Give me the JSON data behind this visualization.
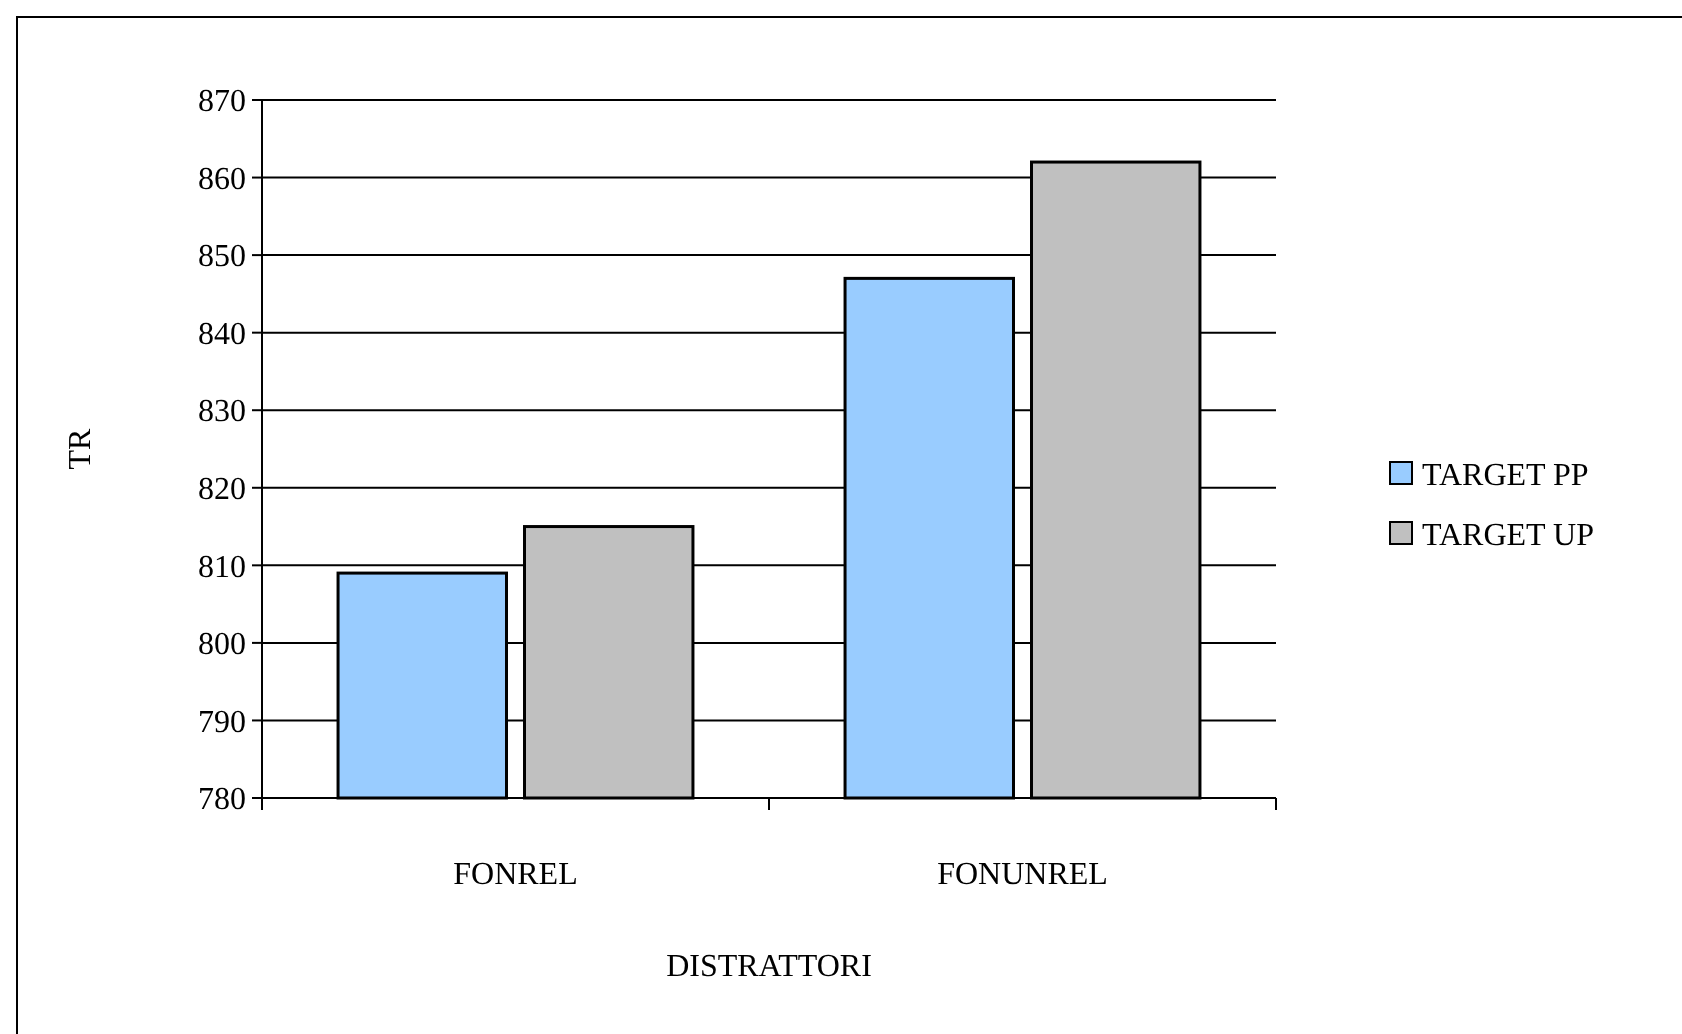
{
  "chart_data": {
    "type": "bar",
    "xlabel": "DISTRATTORI",
    "ylabel": "TR",
    "categories": [
      "FONREL",
      "FONUNREL"
    ],
    "series": [
      {
        "name": "TARGET PP",
        "color": "#99ccff",
        "values": [
          809,
          847
        ]
      },
      {
        "name": "TARGET UP",
        "color": "#c0c0c0",
        "values": [
          815,
          862
        ]
      }
    ],
    "ylim": [
      780,
      870
    ],
    "yticks": [
      780,
      790,
      800,
      810,
      820,
      830,
      840,
      850,
      860,
      870
    ],
    "grid": "y",
    "legend": "right"
  }
}
